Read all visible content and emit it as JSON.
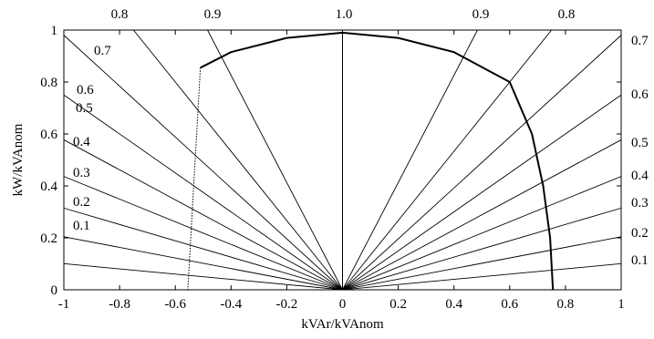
{
  "chart_data": {
    "type": "line",
    "title": "",
    "xlabel": "kVAr/kVAnom",
    "ylabel": "kW/kVAnom",
    "xlim": [
      -1,
      1
    ],
    "ylim": [
      0,
      1
    ],
    "grid": false,
    "x_ticks": [
      "-1",
      "-0.8",
      "-0.6",
      "-0.4",
      "-0.2",
      "0",
      "0.2",
      "0.4",
      "0.6",
      "0.8",
      "1"
    ],
    "y_ticks": [
      "0",
      "0.2",
      "0.4",
      "0.6",
      "0.8",
      "1"
    ],
    "power_factor_lines": {
      "left_labels": [
        {
          "pf": 0.7,
          "label": "0.7"
        },
        {
          "pf": 0.6,
          "label": "0.6"
        },
        {
          "pf": 0.5,
          "label": "0.5"
        },
        {
          "pf": 0.4,
          "label": "0.4"
        },
        {
          "pf": 0.3,
          "label": "0.3"
        },
        {
          "pf": 0.2,
          "label": "0.2"
        },
        {
          "pf": 0.1,
          "label": "0.1"
        }
      ],
      "right_labels": [
        {
          "pf": 0.7,
          "label": "0.7"
        },
        {
          "pf": 0.6,
          "label": "0.6"
        },
        {
          "pf": 0.5,
          "label": "0.5"
        },
        {
          "pf": 0.4,
          "label": "0.4"
        },
        {
          "pf": 0.3,
          "label": "0.3"
        },
        {
          "pf": 0.2,
          "label": "0.2"
        },
        {
          "pf": 0.1,
          "label": "0.1"
        }
      ],
      "top_labels": [
        {
          "pf": 0.8,
          "side": "left",
          "label": "0.8"
        },
        {
          "pf": 0.9,
          "side": "left",
          "label": "0.9"
        },
        {
          "pf": 1.0,
          "side": "center",
          "label": "1.0"
        },
        {
          "pf": 0.9,
          "side": "right",
          "label": "0.9"
        },
        {
          "pf": 0.8,
          "side": "right",
          "label": "0.8"
        }
      ],
      "ray_pf_values": [
        0.1,
        0.2,
        0.3,
        0.4,
        0.5,
        0.6,
        0.7,
        0.8,
        0.9,
        1.0
      ]
    },
    "series": [
      {
        "style": "thick",
        "points": [
          [
            -0.51,
            0.855
          ],
          [
            -0.4,
            0.915
          ],
          [
            -0.2,
            0.97
          ],
          [
            0.0,
            0.99
          ],
          [
            0.2,
            0.97
          ],
          [
            0.4,
            0.915
          ],
          [
            0.6,
            0.8
          ]
        ]
      },
      {
        "style": "thick",
        "points": [
          [
            0.6,
            0.8
          ],
          [
            0.68,
            0.6
          ],
          [
            0.72,
            0.4
          ],
          [
            0.745,
            0.2
          ],
          [
            0.755,
            0.0
          ]
        ]
      },
      {
        "style": "dashed",
        "points": [
          [
            -0.51,
            0.855
          ],
          [
            -0.555,
            0.0
          ]
        ]
      },
      {
        "style": "thin",
        "points": [
          [
            0.0,
            0.99
          ],
          [
            0.0,
            0.0
          ]
        ]
      }
    ]
  }
}
